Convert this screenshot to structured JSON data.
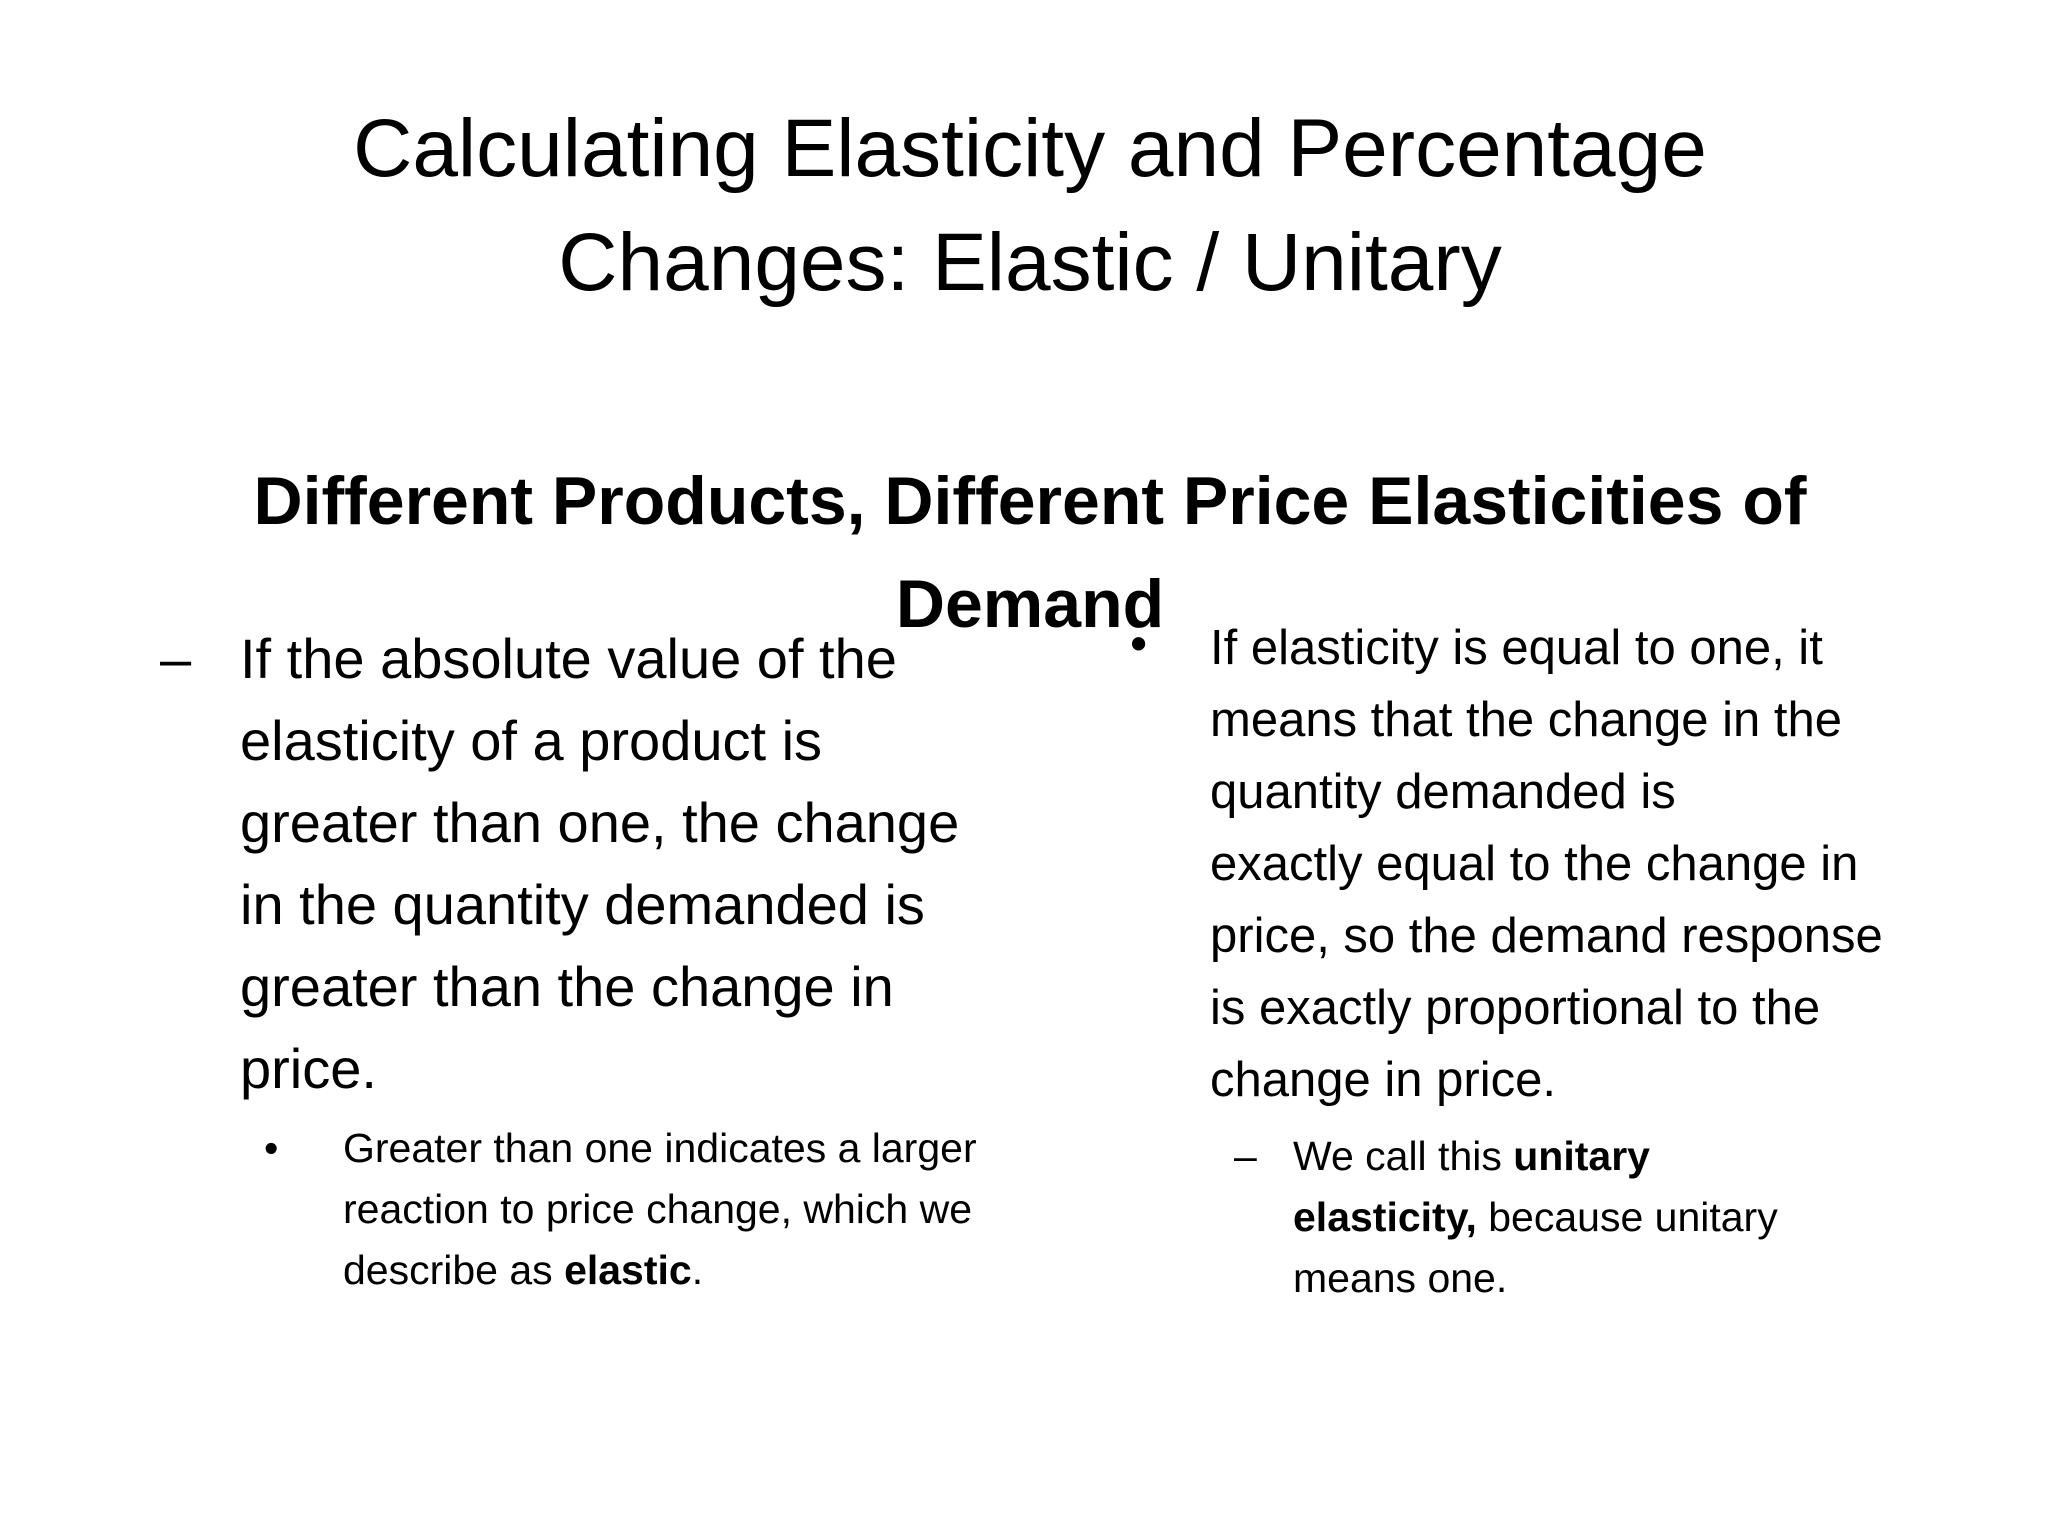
{
  "slide": {
    "title_lines": [
      "Calculating Elasticity and Percentage",
      "Changes: Elastic / Unitary"
    ],
    "subtitle_lines": [
      "Different Products, Different Price Elasticities of",
      "Demand"
    ],
    "left": {
      "main_marker": "–",
      "main_lines": [
        "If the absolute value of the",
        "elasticity of a product is",
        "greater than one, the change",
        "in the quantity demanded is",
        "greater than the change in",
        "price."
      ],
      "sub_marker": "•",
      "sub_lines": [
        "Greater than one indicates a larger",
        "reaction to price change, which we"
      ],
      "sub_last_prefix": "describe as ",
      "sub_last_bold": "elastic",
      "sub_last_suffix": "."
    },
    "right": {
      "main_marker": "•",
      "main_lines": [
        "If elasticity is equal to one, it",
        "means that the change in the",
        "quantity demanded is",
        "exactly equal to the change in",
        "price, so the demand response",
        "is exactly proportional to the",
        "change in price."
      ],
      "sub_marker": "–",
      "sub_line1_prefix": "We call this ",
      "sub_line1_bold": "unitary",
      "sub_line2_bold": "elasticity,",
      "sub_line2_suffix": " because unitary",
      "sub_line3": "means one."
    }
  }
}
